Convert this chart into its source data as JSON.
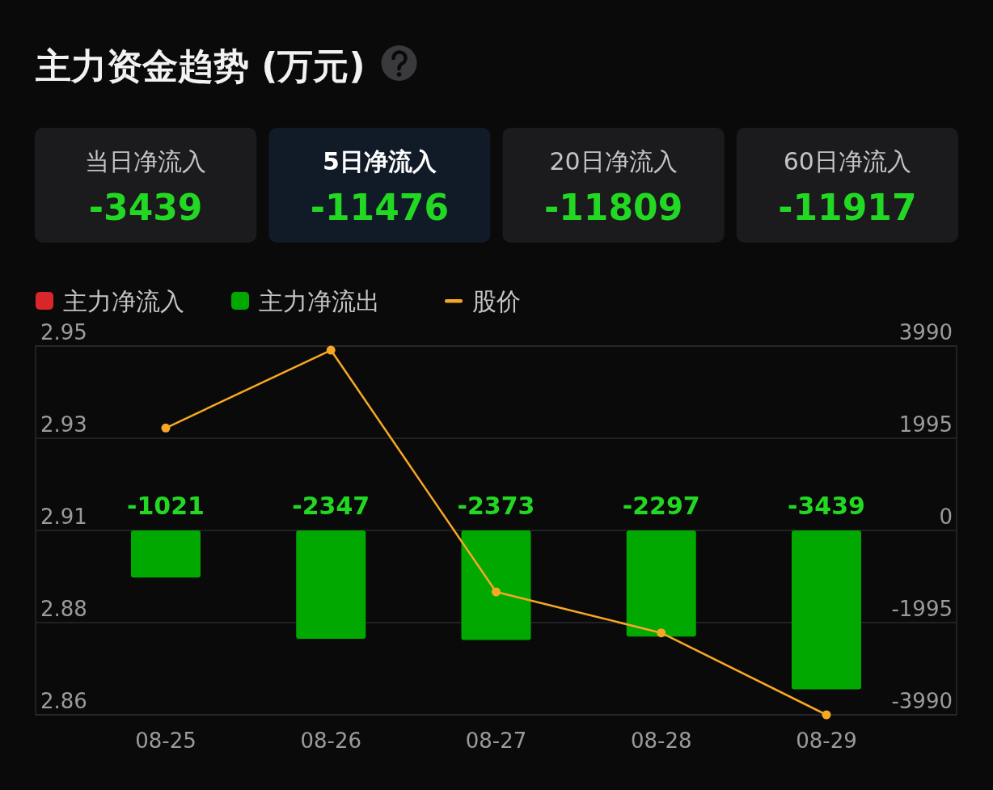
{
  "chart_data": [
    {
      "type": "other",
      "title": "主力资金趋势 (万元)",
      "categories": [
        "当日净流入",
        "5日净流入",
        "20日净流入",
        "60日净流入"
      ],
      "values": [
        -3439,
        -11476,
        -11809,
        -11917
      ],
      "data_labels": true
    },
    {
      "type": "bar",
      "categories": [
        "08-25",
        "08-26",
        "08-27",
        "08-28",
        "08-29"
      ],
      "series": [
        {
          "name": "主力净流入",
          "type": "bar",
          "axis": "y2",
          "color": "#d9262a",
          "values": [
            null,
            null,
            null,
            null,
            null
          ]
        },
        {
          "name": "主力净流出",
          "type": "bar",
          "axis": "y2",
          "color": "#00a800",
          "values": [
            -1021,
            -2347,
            -2373,
            -2297,
            -3439
          ],
          "value_labels": [
            "-1021",
            "-2347",
            "-2373",
            "-2297",
            "-3439"
          ]
        },
        {
          "name": "股价",
          "type": "line",
          "color": "#f7a823",
          "values": [
            2.93,
            2.949,
            2.89,
            2.88,
            2.86
          ]
        }
      ],
      "ylim": [
        2.86,
        2.95
      ],
      "yticks": [
        2.95,
        {
          "value": 2.9275,
          "label": "2.93"
        },
        {
          "value": 2.905,
          "label": "2.91"
        },
        {
          "value": 2.8825,
          "label": "2.88"
        },
        2.86
      ],
      "y2lim": [
        -3990,
        3990
      ],
      "y2ticks": [
        3990,
        1995,
        0,
        -1995,
        -3990
      ],
      "grid": "y",
      "legend": "top left",
      "marker": "circle"
    }
  ]
}
